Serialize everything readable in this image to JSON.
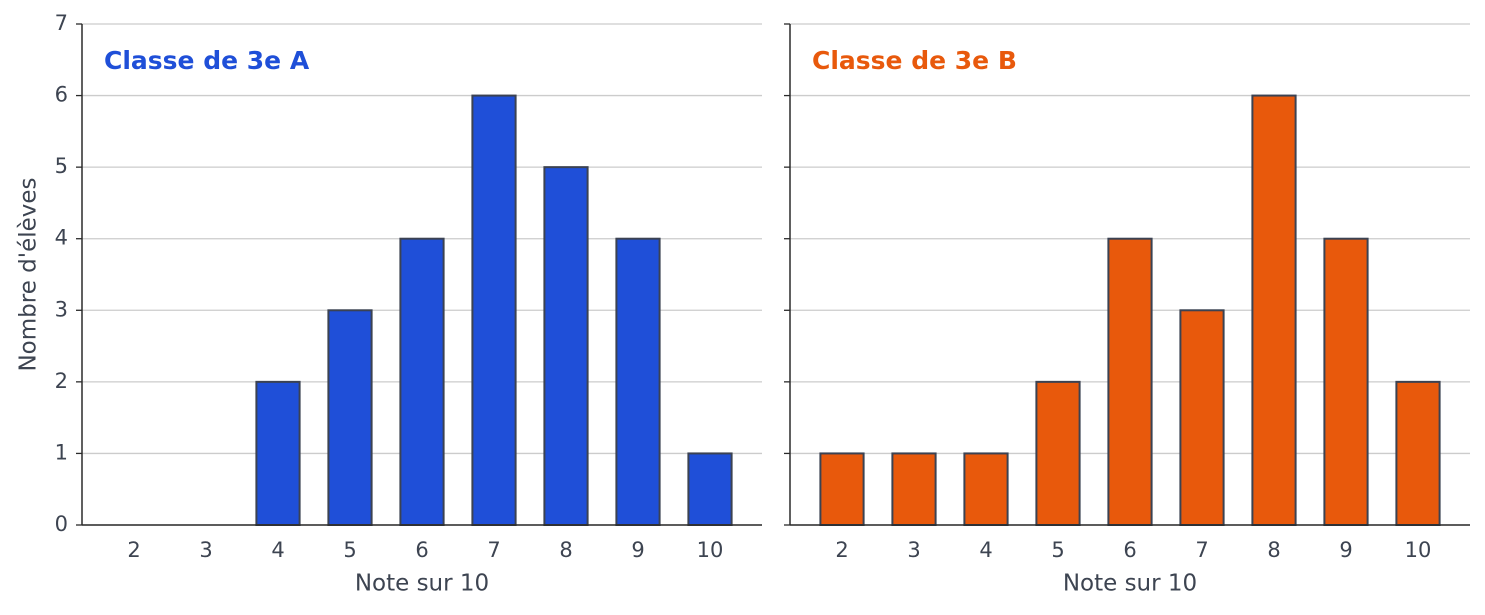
{
  "chart_data": [
    {
      "type": "bar",
      "title": "Classe de 3e A",
      "xlabel": "Note sur 10",
      "ylabel": "Nombre d'élèves",
      "categories": [
        "2",
        "3",
        "4",
        "5",
        "6",
        "7",
        "8",
        "9",
        "10"
      ],
      "values": [
        0,
        0,
        2,
        3,
        4,
        6,
        5,
        4,
        1
      ],
      "color": "#1f4fd8",
      "ylim": [
        0,
        7
      ],
      "yticks": [
        0,
        1,
        2,
        3,
        4,
        5,
        6,
        7
      ],
      "grid": true
    },
    {
      "type": "bar",
      "title": "Classe de 3e B",
      "xlabel": "Note sur 10",
      "categories": [
        "2",
        "3",
        "4",
        "5",
        "6",
        "7",
        "8",
        "9",
        "10"
      ],
      "values": [
        1,
        1,
        1,
        2,
        4,
        3,
        6,
        4,
        2
      ],
      "color": "#e8590c",
      "ylim": [
        0,
        7
      ],
      "yticks": [
        0,
        1,
        2,
        3,
        4,
        5,
        6,
        7
      ],
      "grid": true
    }
  ]
}
